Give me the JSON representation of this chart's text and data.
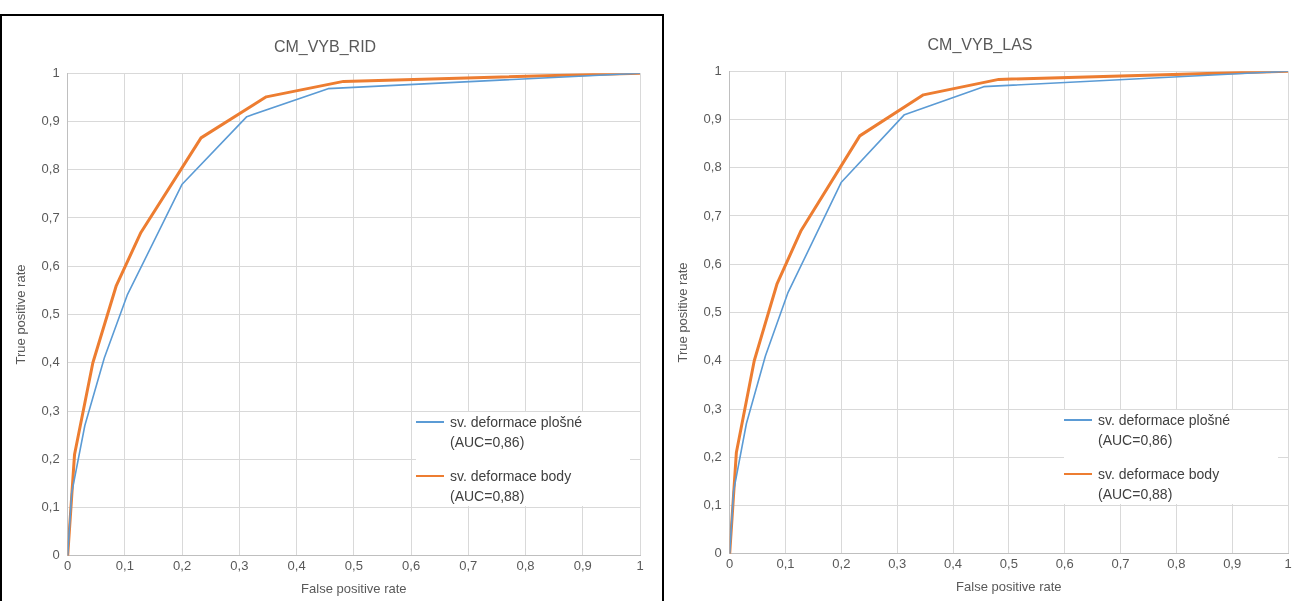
{
  "chart_data": [
    {
      "type": "line",
      "title": "CM_VYB_RID",
      "xlabel": "False positive rate",
      "ylabel": "True positive rate",
      "xlim": [
        0,
        1
      ],
      "xticks": [
        {
          "value": 0,
          "label": "0"
        },
        {
          "value": 0.1,
          "label": "0,1"
        },
        {
          "value": 0.2,
          "label": "0,2"
        },
        {
          "value": 0.3,
          "label": "0,3"
        },
        {
          "value": 0.4,
          "label": "0,4"
        },
        {
          "value": 0.5,
          "label": "0,5"
        },
        {
          "value": 0.6,
          "label": "0,6"
        },
        {
          "value": 0.7,
          "label": "0,7"
        },
        {
          "value": 0.8,
          "label": "0,8"
        },
        {
          "value": 0.9,
          "label": "0,9"
        },
        {
          "value": 1,
          "label": "1"
        }
      ],
      "ylim": [
        0,
        1
      ],
      "yticks": [
        {
          "value": 0,
          "label": "0"
        },
        {
          "value": 0.1,
          "label": "0,1"
        },
        {
          "value": 0.2,
          "label": "0,2"
        },
        {
          "value": 0.3,
          "label": "0,3"
        },
        {
          "value": 0.4,
          "label": "0,4"
        },
        {
          "value": 0.5,
          "label": "0,5"
        },
        {
          "value": 0.6,
          "label": "0,6"
        },
        {
          "value": 0.7,
          "label": "0,7"
        },
        {
          "value": 0.8,
          "label": "0,8"
        },
        {
          "value": 0.9,
          "label": "0,9"
        },
        {
          "value": 1,
          "label": "1"
        }
      ],
      "grid": true,
      "legend": "bottom right",
      "marker": "none",
      "series": [
        {
          "name": "sv. deformace plošné (AUC=0,86)",
          "color": "#5b9bd5",
          "x": [
            0,
            0.007,
            0.03,
            0.064,
            0.104,
            0.2,
            0.313,
            0.455,
            1
          ],
          "values": [
            0,
            0.13,
            0.27,
            0.41,
            0.54,
            0.77,
            0.91,
            0.968,
            1
          ]
        },
        {
          "name": "sv. deformace body (AUC=0,88)",
          "color": "#ed7d31",
          "x": [
            0,
            0.012,
            0.044,
            0.085,
            0.128,
            0.233,
            0.347,
            0.482,
            1
          ],
          "values": [
            0,
            0.21,
            0.4,
            0.56,
            0.67,
            0.866,
            0.951,
            0.983,
            1
          ]
        }
      ]
    },
    {
      "type": "line",
      "title": "CM_VYB_LAS",
      "xlabel": "False positive rate",
      "ylabel": "True positive rate",
      "xlim": [
        0,
        1
      ],
      "xticks": [
        {
          "value": 0,
          "label": "0"
        },
        {
          "value": 0.1,
          "label": "0,1"
        },
        {
          "value": 0.2,
          "label": "0,2"
        },
        {
          "value": 0.3,
          "label": "0,3"
        },
        {
          "value": 0.4,
          "label": "0,4"
        },
        {
          "value": 0.5,
          "label": "0,5"
        },
        {
          "value": 0.6,
          "label": "0,6"
        },
        {
          "value": 0.7,
          "label": "0,7"
        },
        {
          "value": 0.8,
          "label": "0,8"
        },
        {
          "value": 0.9,
          "label": "0,9"
        },
        {
          "value": 1,
          "label": "1"
        }
      ],
      "ylim": [
        0,
        1
      ],
      "yticks": [
        {
          "value": 0,
          "label": "0"
        },
        {
          "value": 0.1,
          "label": "0,1"
        },
        {
          "value": 0.2,
          "label": "0,2"
        },
        {
          "value": 0.3,
          "label": "0,3"
        },
        {
          "value": 0.4,
          "label": "0,4"
        },
        {
          "value": 0.5,
          "label": "0,5"
        },
        {
          "value": 0.6,
          "label": "0,6"
        },
        {
          "value": 0.7,
          "label": "0,7"
        },
        {
          "value": 0.8,
          "label": "0,8"
        },
        {
          "value": 0.9,
          "label": "0,9"
        },
        {
          "value": 1,
          "label": "1"
        }
      ],
      "grid": true,
      "legend": "bottom right",
      "marker": "none",
      "series": [
        {
          "name": "sv. deformace plošné (AUC=0,86)",
          "color": "#5b9bd5",
          "x": [
            0,
            0.007,
            0.03,
            0.064,
            0.104,
            0.2,
            0.313,
            0.455,
            1
          ],
          "values": [
            0,
            0.13,
            0.27,
            0.41,
            0.54,
            0.77,
            0.91,
            0.968,
            1
          ]
        },
        {
          "name": "sv. deformace body (AUC=0,88)",
          "color": "#ed7d31",
          "x": [
            0,
            0.012,
            0.044,
            0.085,
            0.128,
            0.233,
            0.347,
            0.482,
            1
          ],
          "values": [
            0,
            0.21,
            0.4,
            0.56,
            0.67,
            0.866,
            0.951,
            0.983,
            1
          ]
        }
      ]
    }
  ]
}
